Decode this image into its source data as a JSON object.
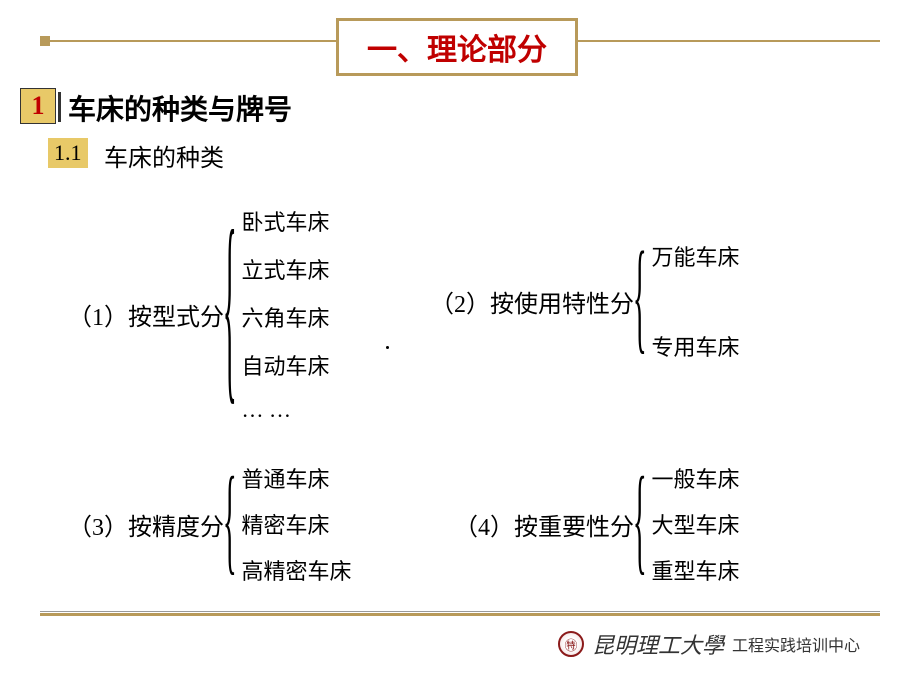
{
  "colors": {
    "accent": "#b89a5a",
    "accent_fill": "#e8c968",
    "title_text": "#c00000",
    "text": "#000000",
    "footer_text": "#333333",
    "logo_border": "#8b1a1a"
  },
  "typography": {
    "title_fontsize": 30,
    "section_fontsize": 28,
    "subsection_fontsize": 24,
    "label_fontsize": 24,
    "item_fontsize": 22,
    "uni_fontsize": 22,
    "dept_fontsize": 16
  },
  "title": "一、理论部分",
  "section": {
    "num": "1",
    "title": "车床的种类与牌号"
  },
  "subsection": {
    "num": "1.1",
    "title": "车床的种类"
  },
  "categories": [
    {
      "id": "cat1",
      "label": "（1）按型式分",
      "items": [
        "卧式车床",
        "立式车床",
        "六角车床",
        "自动车床",
        "… …"
      ]
    },
    {
      "id": "cat2",
      "label": "（2）按使用特性分",
      "items": [
        "万能车床",
        "专用车床"
      ]
    },
    {
      "id": "cat3",
      "label": "（3）按精度分",
      "items": [
        "普通车床",
        "精密车床",
        "高精密车床"
      ]
    },
    {
      "id": "cat4",
      "label": "（4）按重要性分",
      "items": [
        "一般车床",
        "大型车床",
        "重型车床"
      ]
    }
  ],
  "footer": {
    "logo_glyph": "㊕",
    "university": "昆明理工大學",
    "department": "工程实践培训中心"
  }
}
